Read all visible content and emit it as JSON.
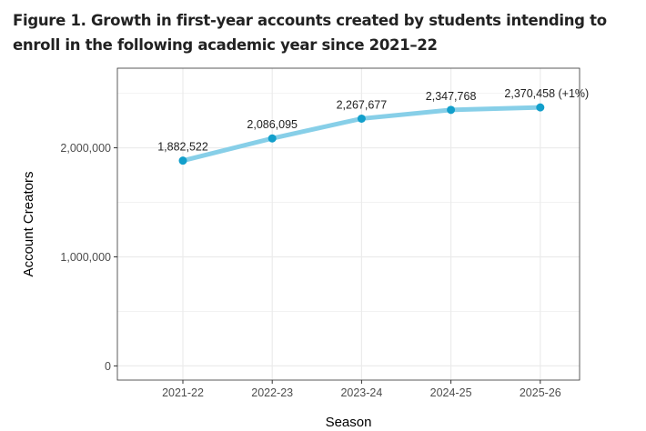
{
  "chart_data": {
    "type": "line",
    "title": "Figure 1. Growth in first-year accounts created by students intending to enroll in the following academic year since 2021–22",
    "xlabel": "Season",
    "ylabel": "Account Creators",
    "categories": [
      "2021-22",
      "2022-23",
      "2023-24",
      "2024-25",
      "2025-26"
    ],
    "values": [
      1882522,
      2086095,
      2267677,
      2347768,
      2370458
    ],
    "data_labels": [
      "1,882,522",
      "2,086,095",
      "2,267,677",
      "2,347,768",
      "2,370,458 (+1%)"
    ],
    "yticks": [
      0,
      1000000,
      2000000
    ],
    "ytick_labels": [
      "0",
      "1,000,000",
      "2,000,000"
    ],
    "ylim": [
      -130000,
      2730000
    ],
    "grid": true,
    "line_color": "#87cfe8",
    "point_color": "#129fcb"
  }
}
